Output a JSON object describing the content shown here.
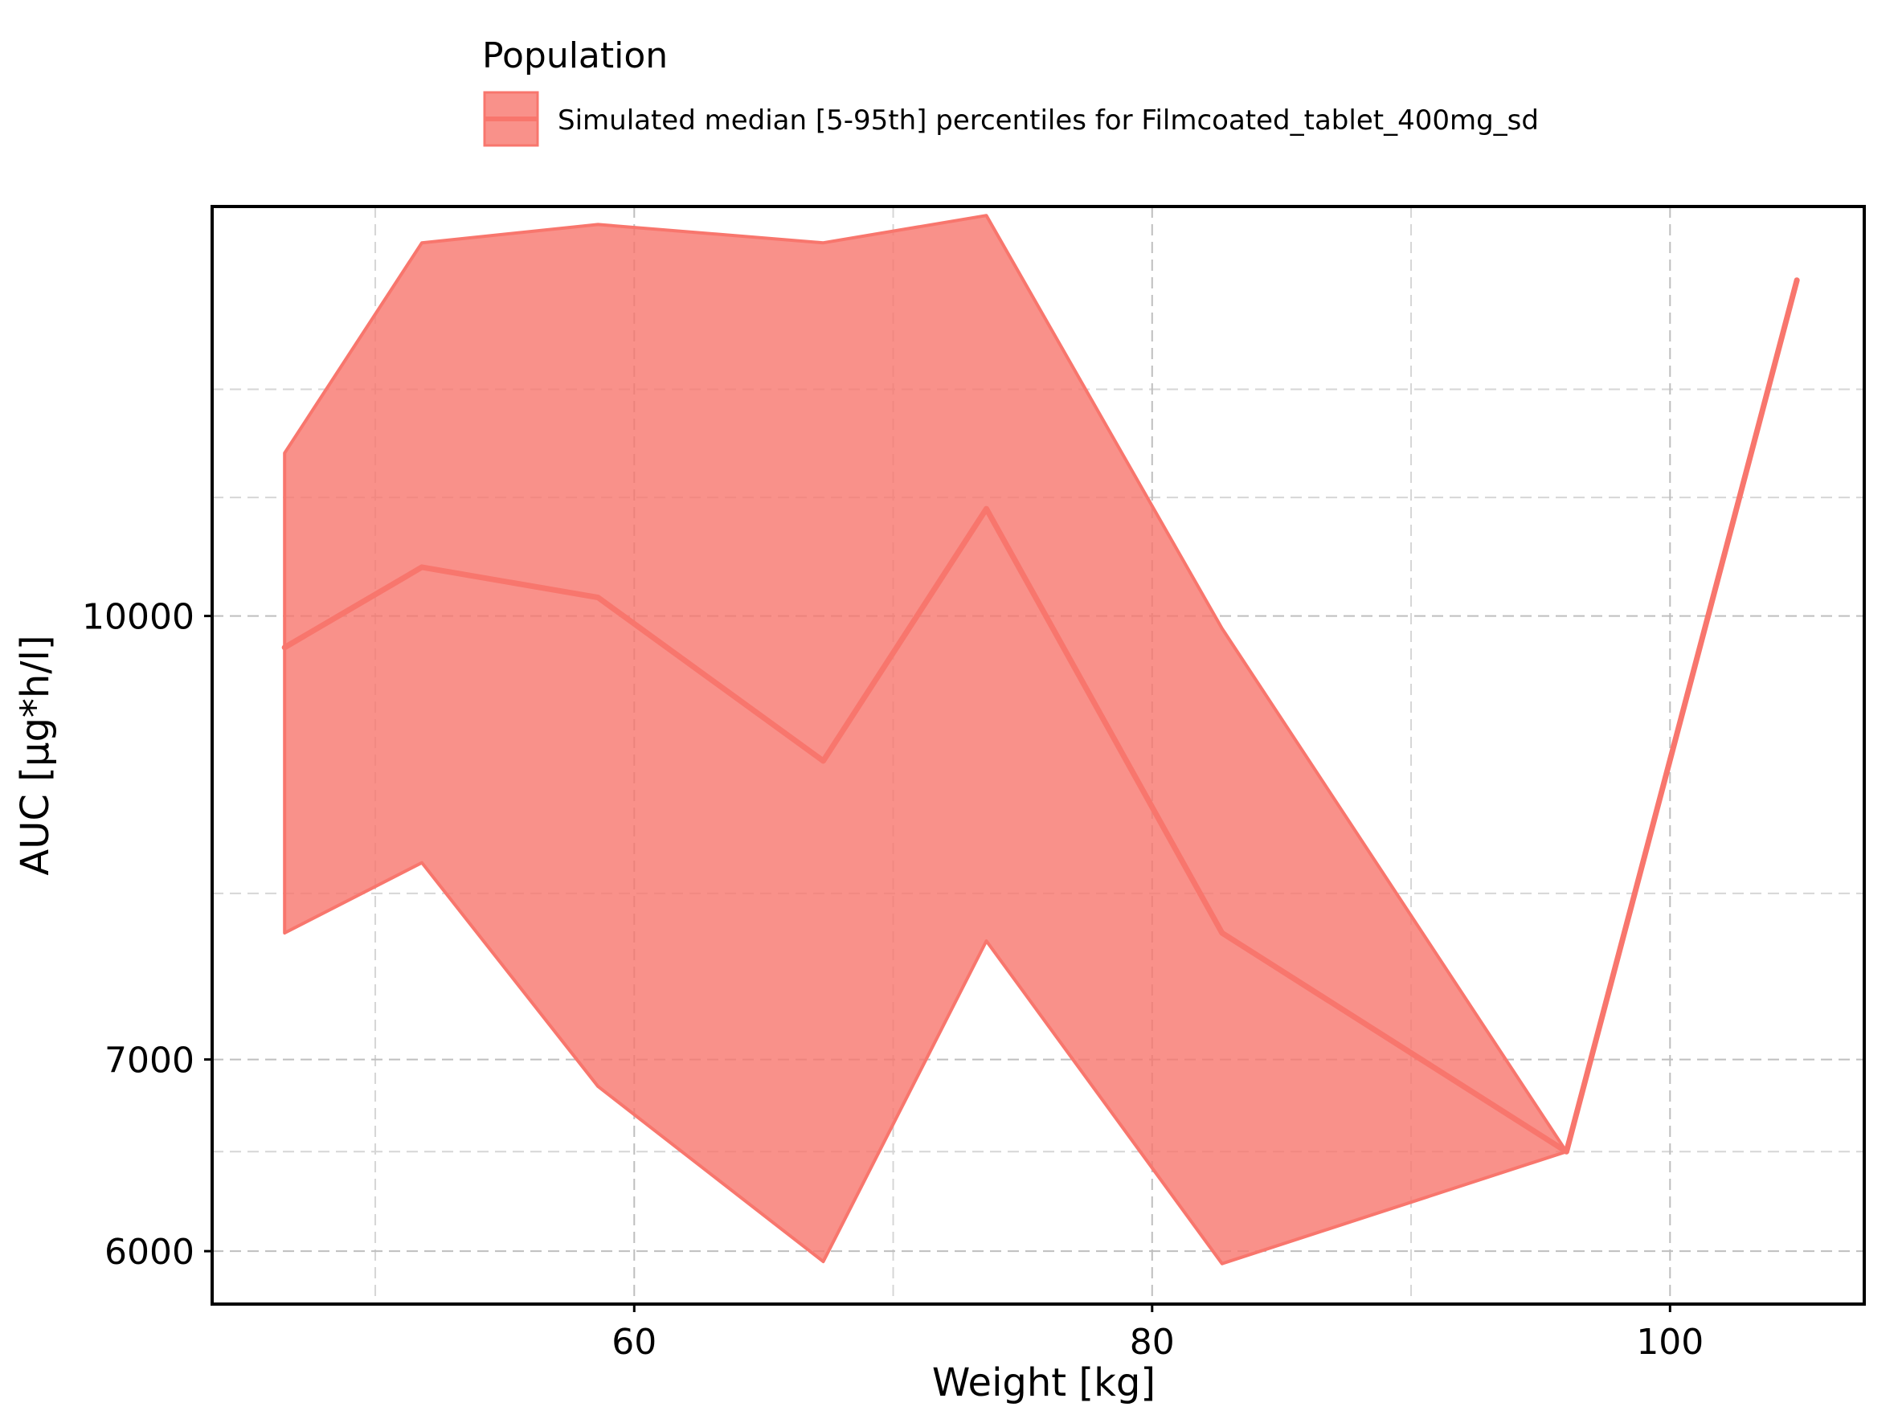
{
  "chart_data": {
    "type": "area",
    "title": "",
    "xlabel": "Weight [kg]",
    "ylabel": "AUC [µg*h/l]",
    "xlim": [
      43.7,
      107.5
    ],
    "ylim": [
      5750,
      13900
    ],
    "y_scale": "log",
    "grid": true,
    "legend": {
      "title": "Population",
      "placement": "top",
      "entries": [
        "Simulated median [5-95th] percentiles for Filmcoated_tablet_400mg_sd"
      ]
    },
    "x_ticks": [
      {
        "value": 60,
        "label": "60"
      },
      {
        "value": 80,
        "label": "80"
      },
      {
        "value": 100,
        "label": "100"
      }
    ],
    "x_minor_ticks": [
      50,
      70,
      90
    ],
    "y_ticks": [
      {
        "value": 6000,
        "label": "6000"
      },
      {
        "value": 7000,
        "label": "7000"
      },
      {
        "value": 10000,
        "label": "10000"
      }
    ],
    "y_minor_ticks": [
      6500,
      8000,
      11000,
      12000
    ],
    "series": [
      {
        "name": "Simulated median [5-95th] percentiles for Filmcoated_tablet_400mg_sd",
        "color": "#F8766D",
        "x": [
          46.5,
          51.8,
          58.6,
          67.3,
          73.6,
          82.7,
          96.0,
          104.9
        ],
        "median": [
          9750,
          10400,
          10150,
          8900,
          10900,
          7750,
          6500,
          13100
        ],
        "lower": [
          7750,
          8200,
          6850,
          5950,
          7700,
          5940,
          6500,
          13100
        ],
        "upper": [
          11400,
          13500,
          13700,
          13500,
          13800,
          9900,
          6500,
          13100
        ]
      }
    ]
  }
}
